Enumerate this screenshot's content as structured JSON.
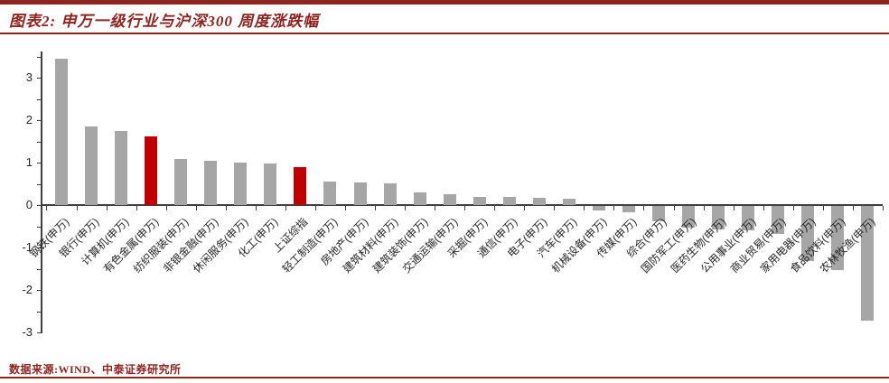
{
  "header": {
    "title": "图表2: 申万一级行业与沪深300 周度涨跌幅"
  },
  "footer": {
    "source": "数据来源:WIND、中泰证券研究所"
  },
  "colors": {
    "accent_dark_red": "#8c2420",
    "bar_gray": "#a6a6a6",
    "bar_red": "#c00000",
    "axis": "#404040"
  },
  "chart_data": {
    "type": "bar",
    "title": "申万一级行业与沪深300 周度涨跌幅",
    "xlabel": "",
    "ylabel": "",
    "ylim": [
      -3,
      3.5
    ],
    "yticks": [
      "3",
      "2",
      "1",
      "0",
      "-1",
      "-2",
      "-3"
    ],
    "ytick_values": [
      3,
      2,
      1,
      0,
      -1,
      -2,
      -3
    ],
    "grid": false,
    "legend": "none",
    "highlight_indices": [
      3,
      8
    ],
    "categories": [
      "钢铁(申万)",
      "银行(申万)",
      "计算机(申万)",
      "有色金属(申万)",
      "纺织服装(申万)",
      "非银金融(申万)",
      "休闲服务(申万)",
      "化工(申万)",
      "上证综指",
      "轻工制造(申万)",
      "房地产(申万)",
      "建筑材料(申万)",
      "建筑装饰(申万)",
      "交通运输(申万)",
      "采掘(申万)",
      "通信(申万)",
      "电子(申万)",
      "汽车(申万)",
      "机械设备(申万)",
      "传媒(申万)",
      "综合(申万)",
      "国防军工(申万)",
      "医药生物(申万)",
      "公用事业(申万)",
      "商业贸易(申万)",
      "家用电器(申万)",
      "食品饮料(申万)",
      "农林牧渔(申万)"
    ],
    "values": [
      3.45,
      1.85,
      1.75,
      1.62,
      1.08,
      1.05,
      1.0,
      0.97,
      0.9,
      0.55,
      0.53,
      0.52,
      0.3,
      0.25,
      0.2,
      0.19,
      0.17,
      0.15,
      -0.1,
      -0.15,
      -0.37,
      -0.52,
      -0.55,
      -0.57,
      -0.65,
      -1.3,
      -1.5,
      -2.7
    ],
    "bar_colors": [
      "#a6a6a6",
      "#a6a6a6",
      "#a6a6a6",
      "#c00000",
      "#a6a6a6",
      "#a6a6a6",
      "#a6a6a6",
      "#a6a6a6",
      "#c00000",
      "#a6a6a6",
      "#a6a6a6",
      "#a6a6a6",
      "#a6a6a6",
      "#a6a6a6",
      "#a6a6a6",
      "#a6a6a6",
      "#a6a6a6",
      "#a6a6a6",
      "#a6a6a6",
      "#a6a6a6",
      "#a6a6a6",
      "#a6a6a6",
      "#a6a6a6",
      "#a6a6a6",
      "#a6a6a6",
      "#a6a6a6",
      "#a6a6a6",
      "#a6a6a6"
    ]
  }
}
